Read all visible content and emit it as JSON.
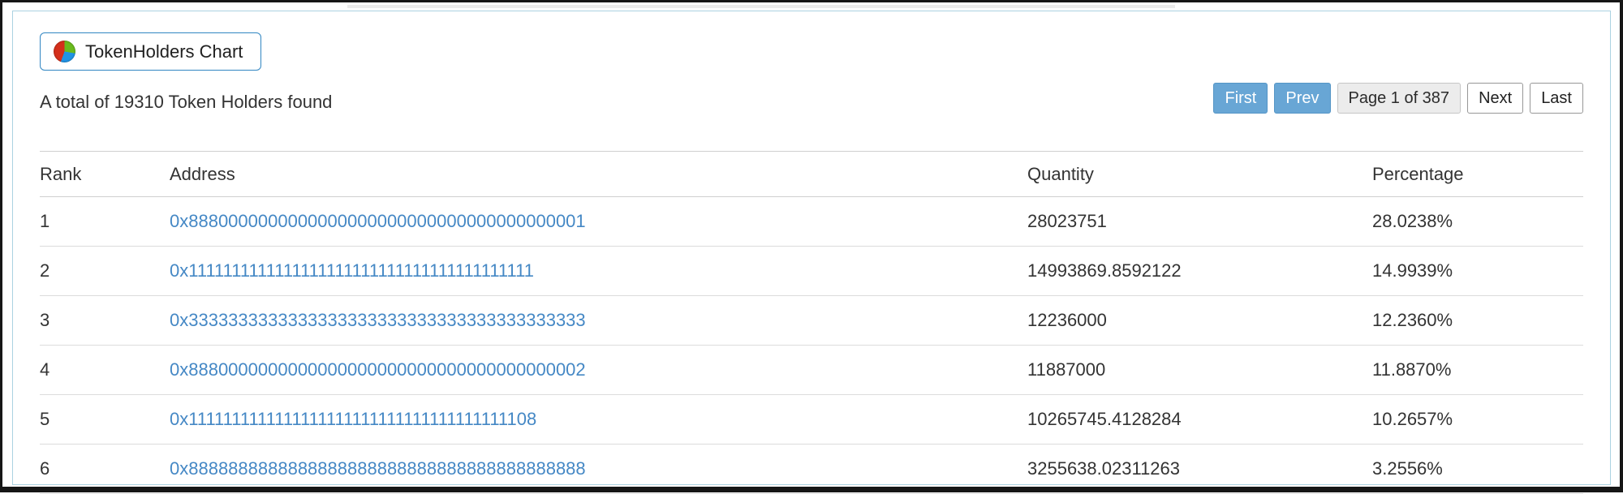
{
  "header": {
    "chart_button_label": "TokenHolders Chart",
    "summary": "A total of 19310 Token Holders found",
    "total_holders": 19310
  },
  "pagination": {
    "first_label": "First",
    "prev_label": "Prev",
    "page_status": "Page 1 of 387",
    "current_page": 1,
    "total_pages": 387,
    "next_label": "Next",
    "last_label": "Last"
  },
  "icons": {
    "pie_chart": "pie-chart-icon",
    "pie_colors": {
      "red": "#d42f1b",
      "green": "#6abb1d",
      "blue": "#2093e4"
    }
  },
  "colors": {
    "link_blue": "#4588c5",
    "pagination_active_blue": "#68a6d5",
    "card_border": "#abd2e1",
    "row_border": "#dcdcdc"
  },
  "table": {
    "columns": [
      "Rank",
      "Address",
      "Quantity",
      "Percentage"
    ],
    "rows": [
      {
        "rank": "1",
        "address": "0x8880000000000000000000000000000000000001",
        "quantity": "28023751",
        "percentage": "28.0238%"
      },
      {
        "rank": "2",
        "address": "0x1111111111111111111111111111111111111111",
        "quantity": "14993869.8592122",
        "percentage": "14.9939%"
      },
      {
        "rank": "3",
        "address": "0x3333333333333333333333333333333333333333",
        "quantity": "12236000",
        "percentage": "12.2360%"
      },
      {
        "rank": "4",
        "address": "0x8880000000000000000000000000000000000002",
        "quantity": "11887000",
        "percentage": "11.8870%"
      },
      {
        "rank": "5",
        "address": "0x1111111111111111111111111111111111111108",
        "quantity": "10265745.4128284",
        "percentage": "10.2657%"
      },
      {
        "rank": "6",
        "address": "0x8888888888888888888888888888888888888888",
        "quantity": "3255638.02311263",
        "percentage": "3.2556%"
      }
    ]
  }
}
